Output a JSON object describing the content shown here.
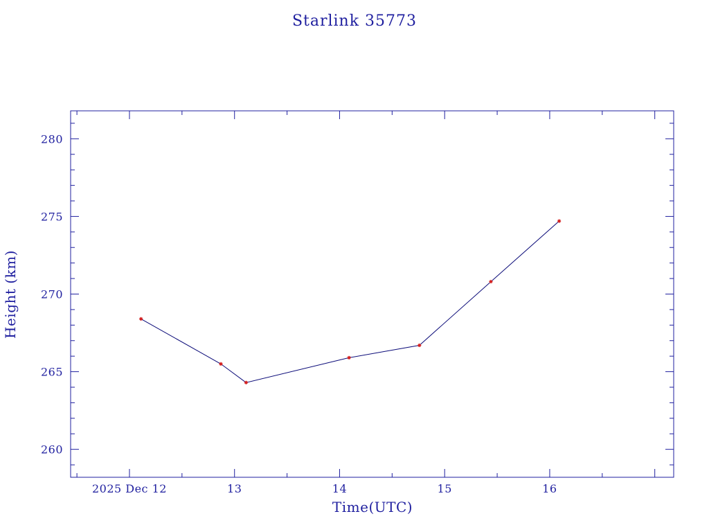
{
  "chart_data": {
    "type": "line",
    "title": "Starlink 35773",
    "xlabel": "Time(UTC)",
    "ylabel": "Height (km)",
    "x_ticks": [
      {
        "value": 12.0,
        "label": "2025 Dec 12"
      },
      {
        "value": 13.0,
        "label": "13"
      },
      {
        "value": 14.0,
        "label": "14"
      },
      {
        "value": 15.0,
        "label": "15"
      },
      {
        "value": 16.0,
        "label": "16"
      }
    ],
    "y_ticks": [
      260,
      265,
      270,
      275,
      280
    ],
    "xlim": [
      11.44,
      17.18
    ],
    "ylim": [
      258.2,
      281.8
    ],
    "grid": false,
    "series": [
      {
        "x": [
          12.11,
          12.87,
          13.11,
          14.09,
          14.76,
          15.44,
          16.09
        ],
        "y": [
          268.4,
          265.5,
          264.3,
          265.9,
          266.7,
          270.8,
          274.7
        ]
      }
    ],
    "colors": {
      "axis": "#1f1f9f",
      "line": "#0a0a78",
      "marker": "#d42020"
    }
  }
}
